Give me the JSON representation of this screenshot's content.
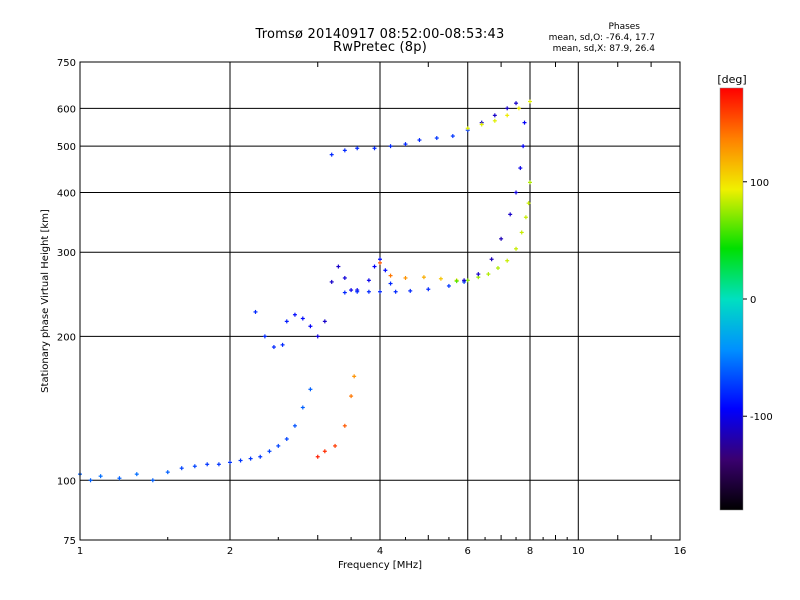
{
  "chart_data": {
    "type": "scatter",
    "title": "Tromsø 20140917 08:52:00-08:53:43",
    "subtitle": "RwPretec (8p)",
    "stats": {
      "heading": "Phases",
      "line_o": "mean, sd,O: -76.4, 17.7",
      "line_x": "mean, sd,X:  87.9, 26.4"
    },
    "xlabel": "Frequency [MHz]",
    "ylabel": "Stationary phase Virtual Height [km]",
    "xscale": "log",
    "yscale": "log",
    "xlim": [
      1,
      16
    ],
    "ylim": [
      75,
      750
    ],
    "xticks": [
      1,
      2,
      4,
      6,
      8,
      10,
      16
    ],
    "yticks": [
      75,
      100,
      200,
      300,
      400,
      500,
      600,
      750
    ],
    "grid": true,
    "colorbar": {
      "label": "[deg]",
      "ticks": [
        100,
        0,
        -100
      ],
      "range": [
        -180,
        180
      ],
      "colormap": "rainbow"
    },
    "series": [
      {
        "points": [
          [
            1.0,
            103,
            -60
          ],
          [
            1.05,
            100,
            -60
          ],
          [
            1.1,
            102,
            -55
          ],
          [
            1.2,
            101,
            -60
          ],
          [
            1.3,
            103,
            -55
          ],
          [
            1.4,
            100,
            -60
          ],
          [
            1.5,
            104,
            -60
          ],
          [
            1.6,
            106,
            -70
          ],
          [
            1.7,
            107,
            -70
          ],
          [
            1.8,
            108,
            -75
          ],
          [
            1.9,
            108,
            -75
          ],
          [
            2.0,
            109,
            -75
          ],
          [
            2.1,
            110,
            -75
          ],
          [
            2.2,
            111,
            -75
          ],
          [
            2.3,
            112,
            -75
          ],
          [
            2.4,
            115,
            -70
          ],
          [
            2.5,
            118,
            -70
          ],
          [
            2.6,
            122,
            -70
          ],
          [
            2.7,
            130,
            -65
          ],
          [
            2.8,
            142,
            -60
          ],
          [
            2.9,
            155,
            -60
          ]
        ]
      },
      {
        "points": [
          [
            2.25,
            225,
            -80
          ],
          [
            2.35,
            200,
            -80
          ],
          [
            2.45,
            190,
            -80
          ],
          [
            2.55,
            192,
            -80
          ],
          [
            2.6,
            215,
            -85
          ],
          [
            2.7,
            222,
            -90
          ],
          [
            2.8,
            218,
            -90
          ],
          [
            2.9,
            210,
            -95
          ],
          [
            3.0,
            200,
            -105
          ],
          [
            3.1,
            215,
            -110
          ],
          [
            3.2,
            260,
            -110
          ],
          [
            3.3,
            280,
            -110
          ],
          [
            3.4,
            265,
            -105
          ],
          [
            3.5,
            250,
            -100
          ],
          [
            3.6,
            250,
            -100
          ],
          [
            3.8,
            262,
            -100
          ],
          [
            3.9,
            280,
            -95
          ],
          [
            4.0,
            290,
            -90
          ],
          [
            4.1,
            275,
            -90
          ],
          [
            4.2,
            258,
            -80
          ]
        ]
      },
      {
        "points": [
          [
            3.4,
            247,
            -80
          ],
          [
            3.6,
            248,
            -80
          ],
          [
            3.8,
            248,
            -80
          ],
          [
            4.0,
            248,
            -80
          ],
          [
            4.3,
            248,
            -80
          ],
          [
            4.6,
            249,
            -80
          ],
          [
            5.0,
            251,
            -80
          ],
          [
            5.5,
            255,
            -75
          ],
          [
            5.9,
            260,
            -70
          ]
        ]
      },
      {
        "points": [
          [
            4.0,
            285,
            150
          ],
          [
            4.2,
            268,
            140
          ],
          [
            4.5,
            265,
            130
          ],
          [
            4.9,
            266,
            120
          ],
          [
            5.3,
            264,
            110
          ],
          [
            5.7,
            262,
            100
          ]
        ]
      },
      {
        "points": [
          [
            5.7,
            261,
            60
          ],
          [
            6.0,
            262,
            70
          ],
          [
            6.3,
            266,
            75
          ],
          [
            6.6,
            270,
            80
          ],
          [
            6.9,
            278,
            80
          ],
          [
            7.2,
            288,
            85
          ],
          [
            7.5,
            305,
            85
          ],
          [
            7.7,
            330,
            85
          ],
          [
            7.85,
            355,
            85
          ],
          [
            7.95,
            380,
            85
          ],
          [
            8.0,
            420,
            80
          ]
        ]
      },
      {
        "points": [
          [
            5.9,
            262,
            -110
          ],
          [
            6.3,
            270,
            -110
          ],
          [
            6.7,
            290,
            -115
          ],
          [
            7.0,
            320,
            -115
          ],
          [
            7.3,
            360,
            -110
          ],
          [
            7.5,
            400,
            -105
          ],
          [
            7.65,
            450,
            -100
          ],
          [
            7.75,
            500,
            -95
          ],
          [
            7.8,
            560,
            -95
          ]
        ]
      },
      {
        "points": [
          [
            3.2,
            480,
            -80
          ],
          [
            3.4,
            490,
            -80
          ],
          [
            3.6,
            495,
            -80
          ],
          [
            3.9,
            495,
            -80
          ],
          [
            4.2,
            500,
            -80
          ],
          [
            4.5,
            505,
            -80
          ],
          [
            4.8,
            515,
            -80
          ],
          [
            5.2,
            520,
            -75
          ],
          [
            5.6,
            525,
            -75
          ],
          [
            6.0,
            540,
            -75
          ],
          [
            6.4,
            560,
            -110
          ],
          [
            6.8,
            580,
            -110
          ],
          [
            7.2,
            600,
            -110
          ],
          [
            7.5,
            615,
            -110
          ]
        ]
      },
      {
        "points": [
          [
            6.0,
            545,
            90
          ],
          [
            6.4,
            555,
            90
          ],
          [
            6.8,
            565,
            90
          ],
          [
            7.2,
            580,
            95
          ],
          [
            7.6,
            600,
            95
          ],
          [
            8.0,
            620,
            90
          ]
        ]
      },
      {
        "points": [
          [
            3.0,
            112,
            170
          ],
          [
            3.1,
            115,
            165
          ],
          [
            3.25,
            118,
            160
          ],
          [
            3.4,
            130,
            150
          ],
          [
            3.5,
            150,
            140
          ],
          [
            3.55,
            165,
            130
          ]
        ]
      }
    ]
  }
}
